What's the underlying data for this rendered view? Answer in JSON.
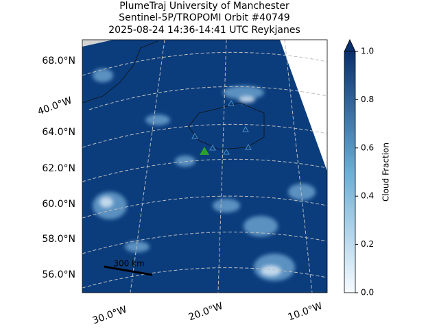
{
  "title": [
    "PlumeTraj    University of Manchester",
    "Sentinel-5P/TROPOMI Orbit #40749",
    "2025-08-24   14:36-14:41 UTC   Reykjanes"
  ],
  "map": {
    "lat_labels": [
      "68.0°N",
      "64.0°N",
      "62.0°N",
      "60.0°N",
      "58.0°N",
      "56.0°N"
    ],
    "lon_labels": [
      "40.0°W",
      "30.0°W",
      "20.0°W",
      "10.0°W"
    ],
    "scale_bar": "300 km"
  },
  "colorbar": {
    "label": "Cloud Fraction",
    "lim": [
      0,
      1
    ],
    "ticks": [
      {
        "value": 0,
        "label": "0.0"
      },
      {
        "value": 0.2,
        "label": "0.2"
      },
      {
        "value": 0.4,
        "label": "0.4"
      },
      {
        "value": 0.6,
        "label": "0.6"
      },
      {
        "value": 0.8,
        "label": "0.8"
      },
      {
        "value": 1,
        "label": "1.0"
      }
    ],
    "low_color": "#f7fbff",
    "high_color": "#08306b"
  }
}
